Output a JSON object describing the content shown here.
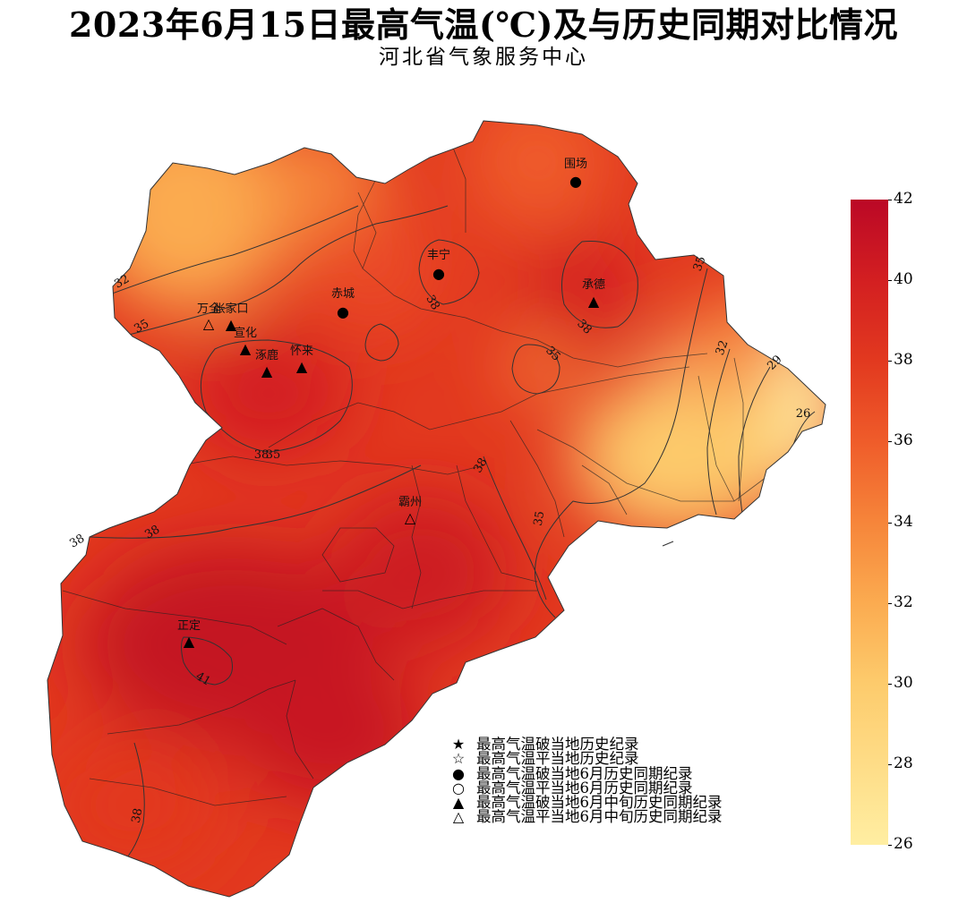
{
  "title": "2023年6月15日最高气温(℃)及与历史同期对比情况",
  "subtitle": "河北省气象服务中心",
  "colorbar": {
    "min": 26,
    "max": 42,
    "ticks": [
      "42",
      "40",
      "38",
      "36",
      "34",
      "32",
      "30",
      "28",
      "26"
    ]
  },
  "isotherm_labels": [
    "32",
    "35",
    "35",
    "38",
    "38",
    "35",
    "38",
    "35",
    "32",
    "29",
    "26",
    "38",
    "38",
    "35",
    "38",
    "41",
    "38"
  ],
  "stations": [
    {
      "name": "围场",
      "symbol": "●",
      "record": "broke-june"
    },
    {
      "name": "丰宁",
      "symbol": "●",
      "record": "broke-june"
    },
    {
      "name": "赤城",
      "symbol": "●",
      "record": "broke-june"
    },
    {
      "name": "承德",
      "symbol": "▲",
      "record": "broke-mid-june"
    },
    {
      "name": "万全",
      "symbol": "△",
      "record": "tied-mid-june"
    },
    {
      "name": "张家口",
      "symbol": "▲",
      "record": "broke-mid-june"
    },
    {
      "name": "宣化",
      "symbol": "▲",
      "record": "broke-mid-june"
    },
    {
      "name": "涿鹿",
      "symbol": "▲",
      "record": "broke-mid-june"
    },
    {
      "name": "怀来",
      "symbol": "▲",
      "record": "broke-mid-june"
    },
    {
      "name": "霸州",
      "symbol": "△",
      "record": "tied-mid-june"
    },
    {
      "name": "正定",
      "symbol": "▲",
      "record": "broke-mid-june"
    }
  ],
  "legend": [
    {
      "symbol": "★",
      "label": "最高气温破当地历史纪录"
    },
    {
      "symbol": "☆",
      "label": "最高气温平当地历史纪录"
    },
    {
      "symbol": "●",
      "label": "最高气温破当地6月历史同期纪录"
    },
    {
      "symbol": "○",
      "label": "最高气温平当地6月历史同期纪录"
    },
    {
      "symbol": "▲",
      "label": "最高气温破当地6月中旬历史同期纪录"
    },
    {
      "symbol": "△",
      "label": "最高气温平当地6月中旬历史同期纪录"
    }
  ],
  "colors": {
    "hot": "#bb0826",
    "warm": "#e2391f",
    "mild": "#f6853a",
    "cool": "#ffeea2"
  }
}
